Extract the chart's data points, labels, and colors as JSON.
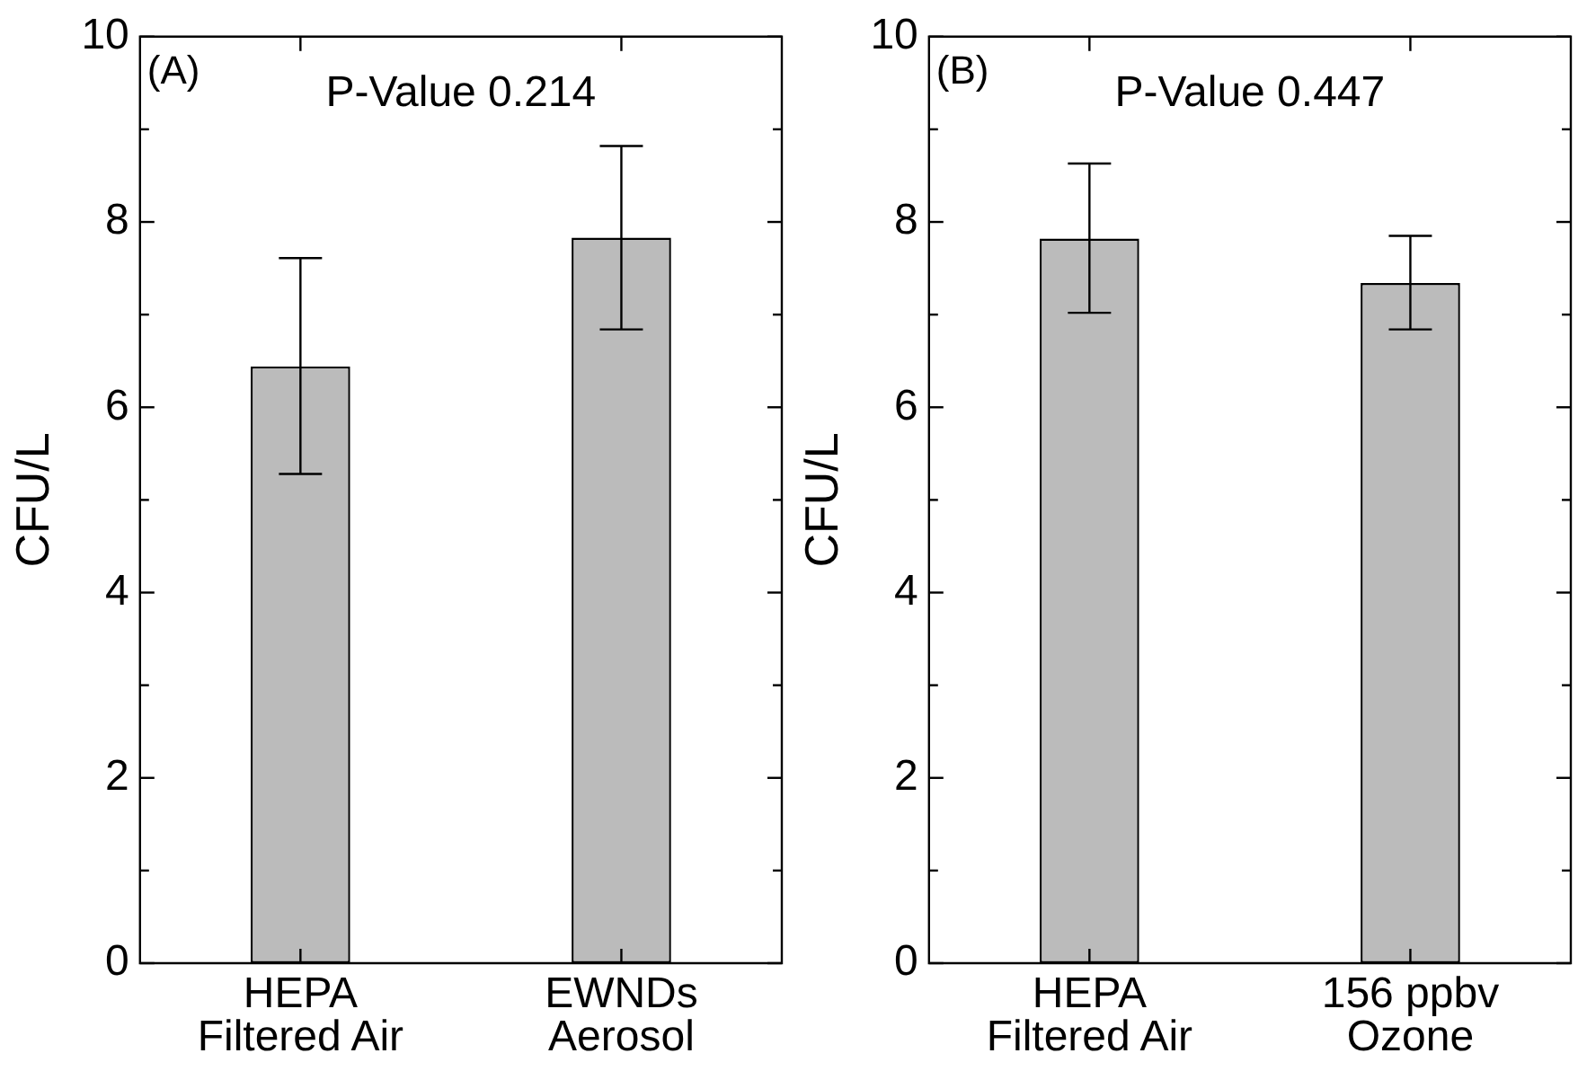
{
  "chart_data": [
    {
      "type": "bar",
      "annotations": [
        "(A)",
        "P-Value 0.214"
      ],
      "ylabel": "CFU/L",
      "categories": [
        "HEPA\nFiltered Air",
        "EWNDs\nAerosol"
      ],
      "values": [
        6.44,
        7.83
      ],
      "errors": [
        [
          5.28,
          7.61
        ],
        [
          6.84,
          8.82
        ]
      ],
      "color": "#bbbbbb",
      "ylim": [
        0,
        10
      ],
      "yticks": [
        0,
        {
          "value": 1,
          "label": null
        },
        2,
        {
          "value": 3,
          "label": null
        },
        4,
        {
          "value": 5,
          "label": null
        },
        6,
        {
          "value": 7,
          "label": null
        },
        8,
        {
          "value": 9,
          "label": null
        },
        10
      ],
      "grid": false,
      "legend": false
    },
    {
      "type": "bar",
      "annotations": [
        "(B)",
        "P-Value 0.447"
      ],
      "ylabel": "CFU/L",
      "categories": [
        "HEPA\nFiltered Air",
        "156 ppbv\nOzone"
      ],
      "values": [
        7.82,
        7.34
      ],
      "errors": [
        [
          7.02,
          8.63
        ],
        [
          6.84,
          7.85
        ]
      ],
      "color": "#bbbbbb",
      "ylim": [
        0,
        10
      ],
      "yticks": [
        0,
        {
          "value": 1,
          "label": null
        },
        2,
        {
          "value": 3,
          "label": null
        },
        4,
        {
          "value": 5,
          "label": null
        },
        6,
        {
          "value": 7,
          "label": null
        },
        8,
        {
          "value": 9,
          "label": null
        },
        10
      ],
      "grid": false,
      "legend": false
    }
  ]
}
